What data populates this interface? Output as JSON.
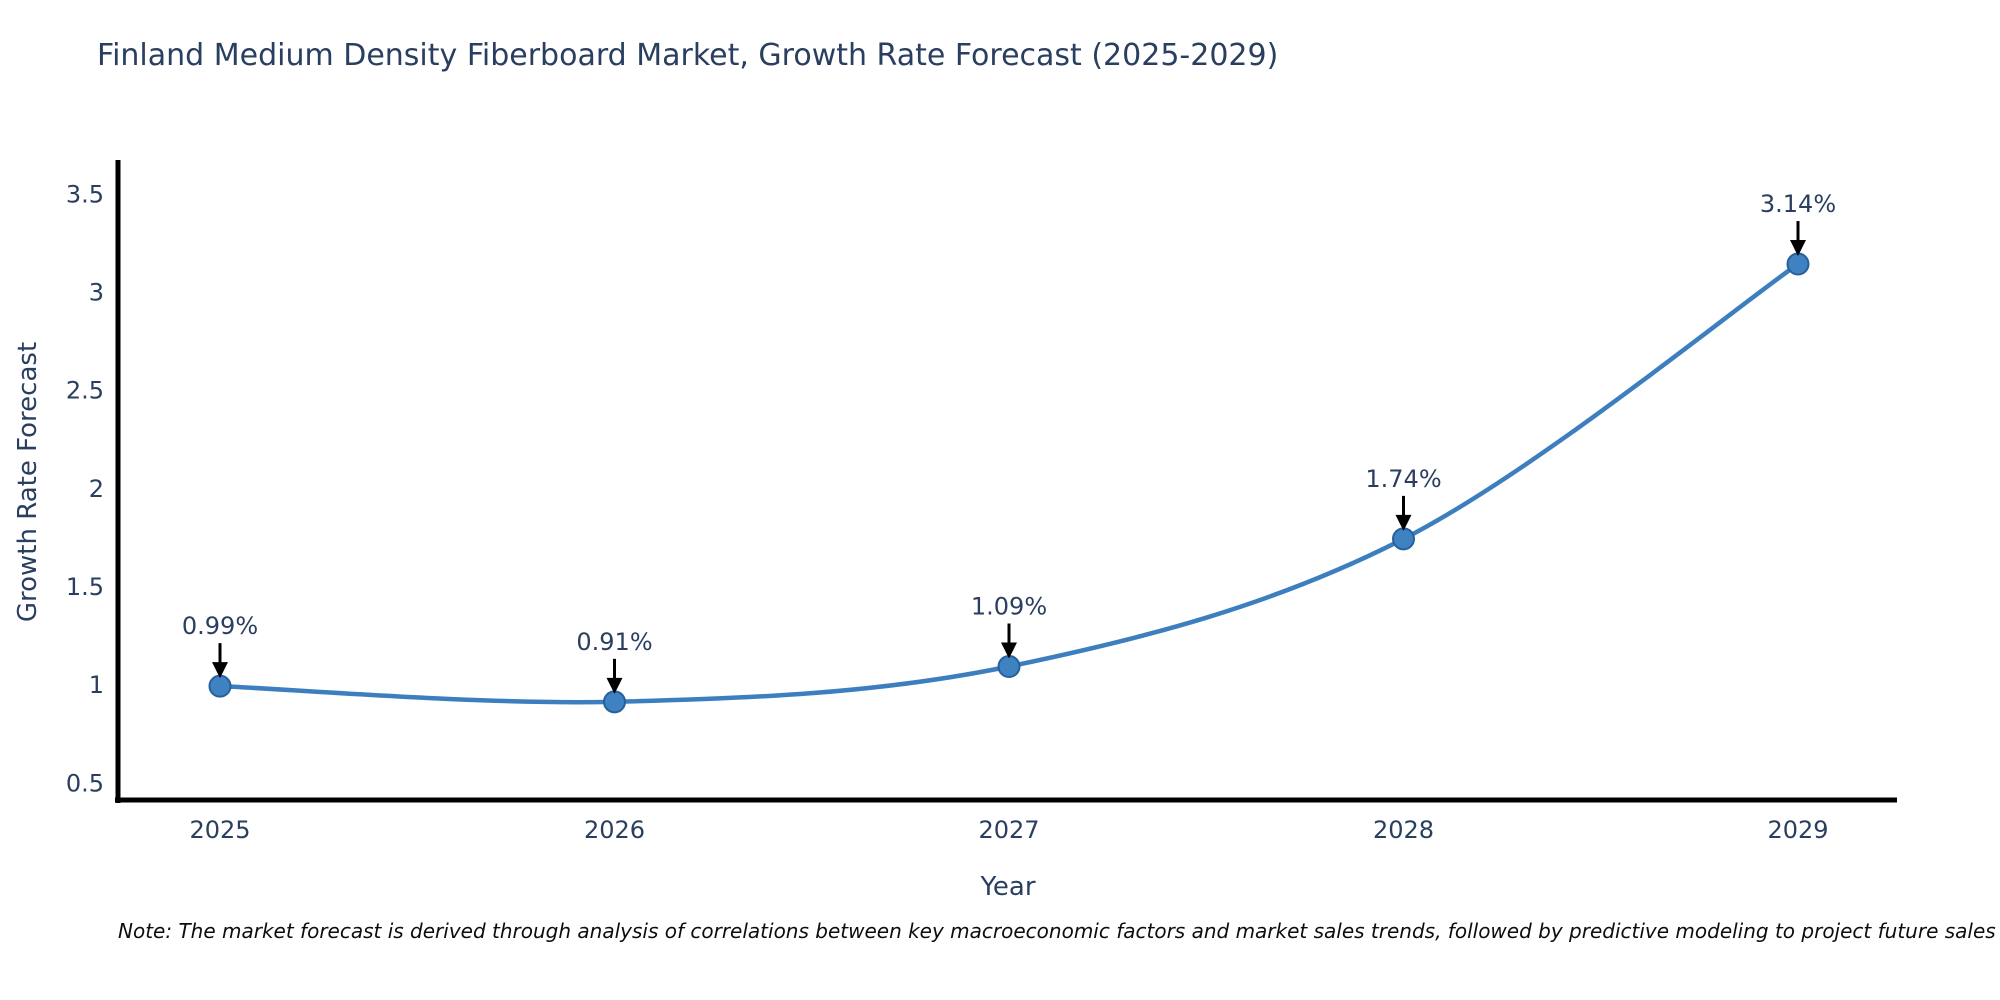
{
  "chart": {
    "title": "Finland Medium Density Fiberboard Market, Growth Rate Forecast (2025-2029)",
    "xlabel": "Year",
    "ylabel": "Growth Rate Forecast",
    "note": "Note: The market forecast is derived through analysis of correlations between key macroeconomic factors and market sales trends, followed by predictive modeling to project future sales"
  },
  "chart_data": {
    "type": "line",
    "title": "Finland Medium Density Fiberboard Market, Growth Rate Forecast (2025-2029)",
    "xlabel": "Year",
    "ylabel": "Growth Rate Forecast",
    "x": [
      2025,
      2026,
      2027,
      2028,
      2029
    ],
    "values": [
      0.99,
      0.91,
      1.09,
      1.74,
      3.14
    ],
    "point_labels": [
      "0.99%",
      "0.91%",
      "1.09%",
      "1.74%",
      "3.14%"
    ],
    "xticklabels": [
      "2025",
      "2026",
      "2027",
      "2028",
      "2029"
    ],
    "yticks": [
      0.5,
      1,
      1.5,
      2,
      2.5,
      3,
      3.5
    ],
    "ylim": [
      0.41,
      3.67
    ],
    "grid": false,
    "legend_position": "none",
    "line_shape": "spline",
    "colors": {
      "line": "#3d7fbe",
      "marker_fill": "#3f82c1",
      "marker_edge": "#27619b",
      "axis": "#000000",
      "tick_text": "#2a3f5f",
      "annotation_text": "#2a3f5f",
      "annotation_arrow": "#000000",
      "title_text": "#2a3f5f",
      "note_text": "#0d0d0d"
    }
  }
}
